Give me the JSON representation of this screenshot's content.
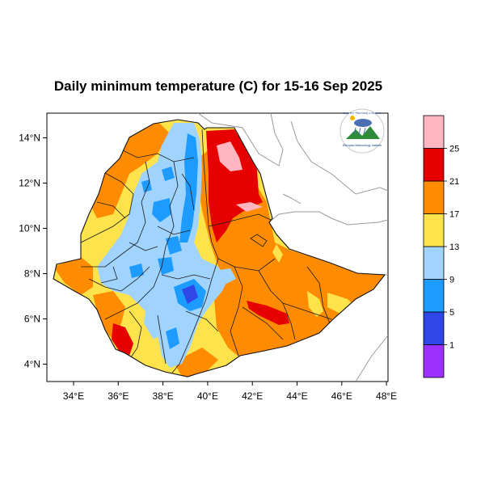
{
  "map": {
    "title": "Daily minimum temperature (C) for 15-16 Sep 2025",
    "lon_ticks": [
      "34°E",
      "36°E",
      "38°E",
      "40°E",
      "42°E",
      "44°E",
      "46°E",
      "48°E"
    ],
    "lat_ticks": [
      "14°N",
      "12°N",
      "10°N",
      "8°N",
      "6°N",
      "4°N"
    ],
    "colorbar": {
      "labels": [
        "1",
        "5",
        "9",
        "13",
        "17",
        "21",
        "25"
      ],
      "colors": [
        "#9b30ff",
        "#2f47e8",
        "#1e9bff",
        "#a0d4ff",
        "#ffe34d",
        "#ff8c00",
        "#e60000",
        "#ffb6c1"
      ]
    },
    "logo": {
      "text_top": "የኢትዮጵያ ሜቲዮሮሎጂ ኢንስቲትዩት",
      "text_bottom": "Ethiopian Meteorology Institute"
    }
  }
}
